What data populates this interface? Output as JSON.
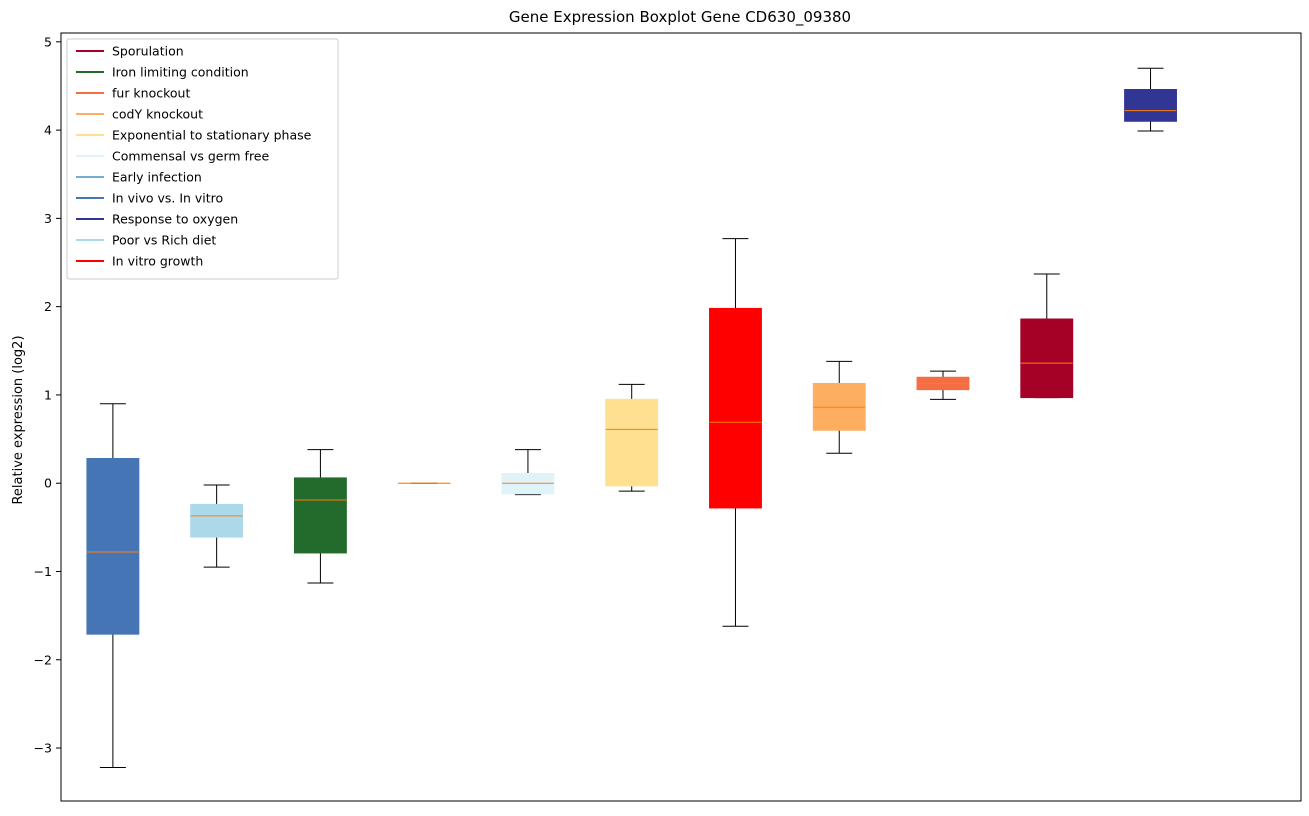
{
  "chart_data": {
    "type": "boxplot",
    "title": "Gene Expression Boxplot Gene CD630_09380",
    "xlabel": "",
    "ylabel": "Relative expression (log2)",
    "ylim": [
      -3.6,
      5.1
    ],
    "yticks": [
      -3,
      -2,
      -1,
      0,
      1,
      2,
      3,
      4,
      5
    ],
    "ytick_labels": [
      "−3",
      "−2",
      "−1",
      "0",
      "1",
      "2",
      "3",
      "4",
      "5"
    ],
    "grid": false,
    "legend_position": "top-left",
    "legend": [
      {
        "label": "Sporulation",
        "color": "#a50026"
      },
      {
        "label": "Iron limiting condition",
        "color": "#226b2c"
      },
      {
        "label": "fur knockout",
        "color": "#f46d43"
      },
      {
        "label": "codY knockout",
        "color": "#fdae61"
      },
      {
        "label": "Exponential to stationary phase",
        "color": "#fee090"
      },
      {
        "label": "Commensal vs germ free",
        "color": "#e0f3f8"
      },
      {
        "label": "Early infection",
        "color": "#74add1"
      },
      {
        "label": "In vivo vs. In vitro",
        "color": "#4575b4"
      },
      {
        "label": "Response to oxygen",
        "color": "#313695"
      },
      {
        "label": "Poor vs Rich diet",
        "color": "#abd9e9"
      },
      {
        "label": "In vitro growth",
        "color": "#ff0000"
      }
    ],
    "median_color": "#ff7f0e",
    "boxes": [
      {
        "group": "In vivo vs. In vitro",
        "color": "#4575b4",
        "whisker_low": -3.22,
        "q1": -1.71,
        "median": -0.78,
        "q3": 0.28,
        "whisker_high": 0.9
      },
      {
        "group": "Poor vs Rich diet",
        "color": "#abd9e9",
        "whisker_low": -0.95,
        "q1": -0.61,
        "median": -0.37,
        "q3": -0.24,
        "whisker_high": -0.02
      },
      {
        "group": "Iron limiting condition",
        "color": "#226b2c",
        "whisker_low": -1.13,
        "q1": -0.79,
        "median": -0.19,
        "q3": 0.06,
        "whisker_high": 0.38
      },
      {
        "group": "codY knockout",
        "color": "#fdae61",
        "whisker_low": 0.0,
        "q1": 0.0,
        "median": 0.0,
        "q3": 0.0,
        "whisker_high": 0.0
      },
      {
        "group": "Commensal vs germ free",
        "color": "#e0f3f8",
        "whisker_low": -0.13,
        "q1": -0.12,
        "median": 0.0,
        "q3": 0.11,
        "whisker_high": 0.38
      },
      {
        "group": "Exponential to stationary phase",
        "color": "#fee090",
        "whisker_low": -0.09,
        "q1": -0.03,
        "median": 0.61,
        "q3": 0.95,
        "whisker_high": 1.12
      },
      {
        "group": "In vitro growth",
        "color": "#ff0000",
        "whisker_low": -1.62,
        "q1": -0.28,
        "median": 0.69,
        "q3": 1.98,
        "whisker_high": 2.77
      },
      {
        "group": "codY knockout",
        "color": "#fdae61",
        "whisker_low": 0.34,
        "q1": 0.6,
        "median": 0.86,
        "q3": 1.13,
        "whisker_high": 1.38
      },
      {
        "group": "fur knockout",
        "color": "#f46d43",
        "whisker_low": 0.95,
        "q1": 1.06,
        "median": 1.13,
        "q3": 1.2,
        "whisker_high": 1.27
      },
      {
        "group": "Sporulation",
        "color": "#a50026",
        "whisker_low": 0.97,
        "q1": 0.97,
        "median": 1.36,
        "q3": 1.86,
        "whisker_high": 2.37
      },
      {
        "group": "Response to oxygen",
        "color": "#313695",
        "whisker_low": 3.99,
        "q1": 4.1,
        "median": 4.22,
        "q3": 4.46,
        "whisker_high": 4.7
      }
    ]
  }
}
